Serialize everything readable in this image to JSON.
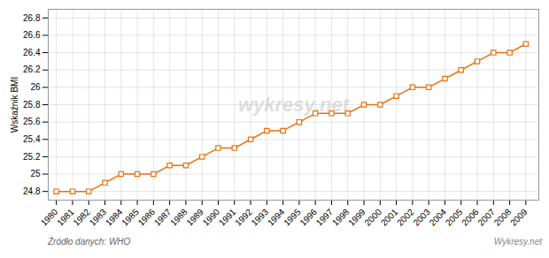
{
  "chart_data": {
    "type": "line",
    "x": [
      1980,
      1981,
      1982,
      1983,
      1984,
      1985,
      1986,
      1987,
      1988,
      1989,
      1990,
      1991,
      1992,
      1993,
      1994,
      1995,
      1996,
      1997,
      1998,
      1999,
      2000,
      2001,
      2002,
      2003,
      2004,
      2005,
      2006,
      2007,
      2008,
      2009
    ],
    "values": [
      24.8,
      24.8,
      24.8,
      24.9,
      25.0,
      25.0,
      25.0,
      25.1,
      25.1,
      25.2,
      25.3,
      25.3,
      25.4,
      25.5,
      25.5,
      25.6,
      25.7,
      25.7,
      25.7,
      25.8,
      25.8,
      25.9,
      26.0,
      26.0,
      26.1,
      26.2,
      26.3,
      26.4,
      26.4,
      26.5
    ],
    "color": "#e8720c",
    "marker": "square",
    "y_label": "Wskaźnik BMI",
    "xlim": [
      1979.5,
      2009.8
    ],
    "xticks": [
      1980,
      1981,
      1982,
      1983,
      1984,
      1985,
      1986,
      1987,
      1988,
      1989,
      1990,
      1991,
      1992,
      1993,
      1994,
      1995,
      1996,
      1997,
      1998,
      1999,
      2000,
      2001,
      2002,
      2003,
      2004,
      2005,
      2006,
      2007,
      2008,
      2009
    ],
    "ylim": [
      24.7,
      26.9
    ],
    "yticks": [
      24.8,
      25.0,
      25.2,
      25.4,
      25.6,
      25.8,
      26.0,
      26.2,
      26.4,
      26.6,
      26.8
    ],
    "grid": true,
    "annotations": [
      "wykresy.net",
      "Źródło danych:  WHO",
      "Wykresy.net"
    ]
  }
}
